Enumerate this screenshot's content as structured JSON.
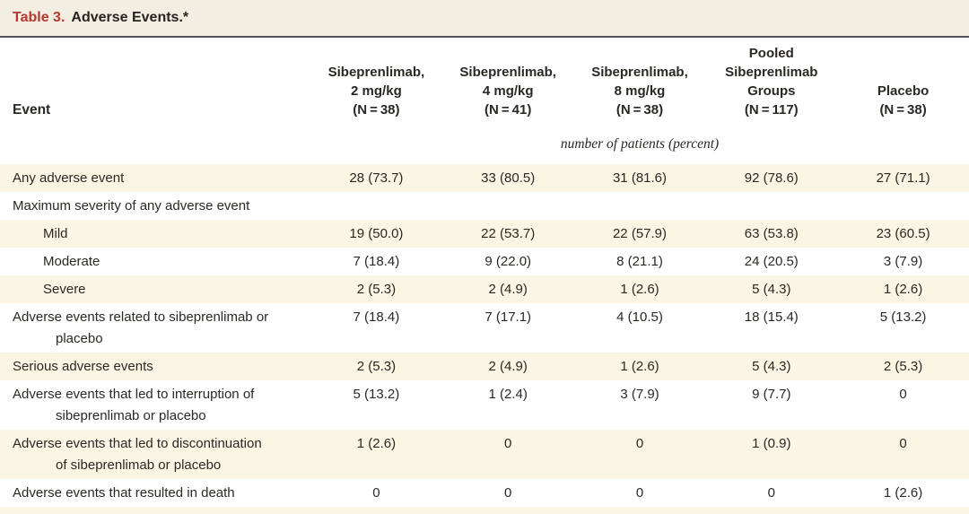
{
  "title": {
    "label": "Table 3.",
    "text": "Adverse Events.*"
  },
  "header": {
    "event_label": "Event",
    "columns": [
      "Sibeprenlimab,\n2 mg/kg\n(N = 38)",
      "Sibeprenlimab,\n4 mg/kg\n(N = 41)",
      "Sibeprenlimab,\n8 mg/kg\n(N = 38)",
      "Pooled\nSibeprenlimab\nGroups\n(N = 117)",
      "Placebo\n(N = 38)"
    ],
    "unit_note": "number of patients (percent)"
  },
  "rows": [
    {
      "label": "Any adverse event",
      "indent": 0,
      "values": [
        "28 (73.7)",
        "33 (80.5)",
        "31 (81.6)",
        "92 (78.6)",
        "27 (71.1)"
      ]
    },
    {
      "label": "Maximum severity of any adverse event",
      "indent": 0,
      "values": [
        "",
        "",
        "",
        "",
        ""
      ]
    },
    {
      "label": "Mild",
      "indent": 1,
      "values": [
        "19 (50.0)",
        "22 (53.7)",
        "22 (57.9)",
        "63 (53.8)",
        "23 (60.5)"
      ]
    },
    {
      "label": "Moderate",
      "indent": 1,
      "values": [
        "7 (18.4)",
        "9 (22.0)",
        "8 (21.1)",
        "24 (20.5)",
        "3 (7.9)"
      ]
    },
    {
      "label": "Severe",
      "indent": 1,
      "values": [
        "2 (5.3)",
        "2 (4.9)",
        "1 (2.6)",
        "5 (4.3)",
        "1 (2.6)"
      ]
    },
    {
      "label": "Adverse events related to sibeprenlimab or\nplacebo",
      "indent": 0,
      "values": [
        "7 (18.4)",
        "7 (17.1)",
        "4 (10.5)",
        "18 (15.4)",
        "5 (13.2)"
      ]
    },
    {
      "label": "Serious adverse events",
      "indent": 0,
      "values": [
        "2 (5.3)",
        "2 (4.9)",
        "1 (2.6)",
        "5 (4.3)",
        "2 (5.3)"
      ]
    },
    {
      "label": "Adverse events that led to interruption of\nsibeprenlimab or placebo",
      "indent": 0,
      "values": [
        "5 (13.2)",
        "1 (2.4)",
        "3 (7.9)",
        "9 (7.7)",
        "0"
      ]
    },
    {
      "label": "Adverse events that led to discontinuation\nof sibeprenlimab or placebo",
      "indent": 0,
      "values": [
        "1 (2.6)",
        "0",
        "0",
        "1 (0.9)",
        "0"
      ]
    },
    {
      "label": "Adverse events that resulted in death",
      "indent": 0,
      "values": [
        "0",
        "0",
        "0",
        "0",
        "1 (2.6)"
      ]
    }
  ],
  "colors": {
    "accent_red": "#b23a31",
    "text_dark": "#2b2824",
    "stripe_cream": "#fbf5e3",
    "titlebar_cream": "#f2eee1",
    "rule_gray": "#515257",
    "page_white": "#ffffff"
  }
}
